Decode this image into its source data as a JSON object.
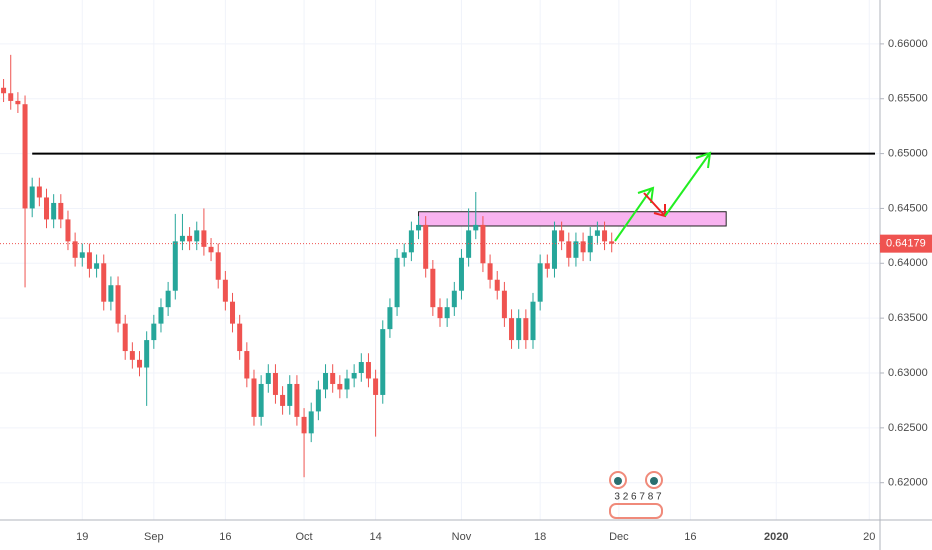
{
  "chart_data": {
    "type": "candlestick",
    "categories": [
      null,
      null,
      null,
      null,
      null,
      null,
      null,
      null,
      null,
      null,
      null,
      "19",
      null,
      null,
      null,
      null,
      null,
      null,
      null,
      null,
      null,
      "Sep",
      null,
      null,
      null,
      null,
      null,
      null,
      null,
      null,
      null,
      "16",
      null,
      null,
      null,
      null,
      null,
      null,
      null,
      null,
      null,
      null,
      "Oct",
      null,
      null,
      null,
      null,
      null,
      null,
      null,
      null,
      null,
      "14",
      null,
      null,
      null,
      null,
      null,
      null,
      null,
      null,
      null,
      null,
      null,
      "Nov",
      null,
      null,
      null,
      null,
      null,
      null,
      null,
      null,
      null,
      null,
      "18",
      null,
      null,
      null,
      null,
      null,
      null,
      null,
      null,
      null,
      null,
      "Dec",
      null,
      null,
      null,
      null,
      null,
      null,
      null,
      null,
      null,
      "16",
      null,
      null,
      null,
      null,
      null,
      null,
      null,
      null,
      null,
      null,
      null,
      "2020",
      null,
      null,
      null,
      null,
      null,
      null,
      null,
      null,
      null,
      null,
      null,
      null,
      "20",
      null
    ],
    "open": [
      0.656,
      0.6555,
      0.6548,
      0.6545,
      0.645,
      0.647,
      0.646,
      0.644,
      0.6455,
      0.644,
      0.642,
      0.6405,
      0.641,
      0.6395,
      0.64,
      0.6365,
      0.638,
      0.6345,
      0.632,
      0.6312,
      0.6305,
      0.633,
      0.6345,
      0.636,
      0.6375,
      0.642,
      0.6425,
      0.642,
      0.643,
      0.6415,
      0.641,
      0.6385,
      0.6365,
      0.6345,
      0.632,
      0.6295,
      0.626,
      0.629,
      0.63,
      0.628,
      0.627,
      0.629,
      0.626,
      0.6245,
      0.6265,
      0.6285,
      0.63,
      0.629,
      0.6285,
      0.6295,
      0.63,
      0.631,
      0.6295,
      0.628,
      0.634,
      0.636,
      0.6405,
      0.641,
      0.643,
      0.6435,
      0.6395,
      0.636,
      0.635,
      0.636,
      0.6375,
      0.6405,
      0.643,
      0.6435,
      0.64,
      0.6385,
      0.6375,
      0.635,
      0.633,
      0.635,
      0.633,
      0.6365,
      0.64,
      0.6395,
      0.643,
      0.642,
      0.6405,
      0.642,
      0.641,
      0.6425,
      0.643,
      0.642,
      null,
      null,
      null,
      null,
      null,
      null,
      null,
      null,
      null,
      null,
      null,
      null,
      null,
      null,
      null,
      null,
      null,
      null,
      null,
      null,
      null,
      null,
      null,
      null,
      null,
      null,
      null,
      null,
      null,
      null,
      null,
      null,
      null,
      null,
      null,
      null,
      null
    ],
    "high": [
      0.6568,
      0.659,
      0.6556,
      0.6553,
      0.6478,
      0.6478,
      0.6468,
      0.6463,
      0.6463,
      0.6448,
      0.6428,
      0.6418,
      0.6418,
      0.6408,
      0.6408,
      0.6388,
      0.6388,
      0.6353,
      0.6328,
      0.632,
      0.6338,
      0.6353,
      0.6368,
      0.6383,
      0.6445,
      0.6445,
      0.6433,
      0.6438,
      0.645,
      0.6423,
      0.6418,
      0.6393,
      0.6373,
      0.6353,
      0.6328,
      0.6303,
      0.6298,
      0.6308,
      0.6308,
      0.6288,
      0.6298,
      0.6298,
      0.6268,
      0.6273,
      0.6293,
      0.6308,
      0.6308,
      0.6298,
      0.6303,
      0.6308,
      0.6318,
      0.6318,
      0.6303,
      0.6348,
      0.6368,
      0.6413,
      0.6418,
      0.6438,
      0.6443,
      0.6443,
      0.6403,
      0.6368,
      0.6368,
      0.6383,
      0.6413,
      0.645,
      0.6465,
      0.6443,
      0.6408,
      0.6393,
      0.6383,
      0.6358,
      0.6358,
      0.6358,
      0.6373,
      0.6408,
      0.6408,
      0.6438,
      0.6438,
      0.6428,
      0.6428,
      0.6428,
      0.6433,
      0.6438,
      0.6438,
      0.6428,
      null,
      null,
      null,
      null,
      null,
      null,
      null,
      null,
      null,
      null,
      null,
      null,
      null,
      null,
      null,
      null,
      null,
      null,
      null,
      null,
      null,
      null,
      null,
      null,
      null,
      null,
      null,
      null,
      null,
      null,
      null,
      null,
      null,
      null,
      null,
      null,
      null
    ],
    "low": [
      0.6547,
      0.654,
      0.6537,
      0.6378,
      0.6442,
      0.6452,
      0.6432,
      0.6432,
      0.6432,
      0.6412,
      0.6397,
      0.6397,
      0.6387,
      0.6387,
      0.6357,
      0.6357,
      0.6337,
      0.6312,
      0.6304,
      0.6297,
      0.627,
      0.6322,
      0.6337,
      0.6352,
      0.6367,
      0.6412,
      0.6412,
      0.6412,
      0.6407,
      0.6402,
      0.6377,
      0.6357,
      0.6337,
      0.6312,
      0.6287,
      0.6252,
      0.6252,
      0.6282,
      0.6272,
      0.6262,
      0.6262,
      0.6252,
      0.6205,
      0.6237,
      0.6257,
      0.6277,
      0.6282,
      0.6277,
      0.6277,
      0.6287,
      0.6292,
      0.6287,
      0.6242,
      0.6272,
      0.6332,
      0.6352,
      0.6397,
      0.6402,
      0.6422,
      0.6387,
      0.6352,
      0.6342,
      0.6342,
      0.6352,
      0.6367,
      0.6397,
      0.6422,
      0.6392,
      0.6377,
      0.6367,
      0.6342,
      0.6322,
      0.6322,
      0.6322,
      0.6322,
      0.6357,
      0.6387,
      0.6387,
      0.6412,
      0.6397,
      0.6397,
      0.6402,
      0.6402,
      0.6417,
      0.6412,
      0.641,
      null,
      null,
      null,
      null,
      null,
      null,
      null,
      null,
      null,
      null,
      null,
      null,
      null,
      null,
      null,
      null,
      null,
      null,
      null,
      null,
      null,
      null,
      null,
      null,
      null,
      null,
      null,
      null,
      null,
      null,
      null,
      null,
      null,
      null,
      null,
      null,
      null
    ],
    "close": [
      0.6555,
      0.6548,
      0.6545,
      0.645,
      0.647,
      0.646,
      0.644,
      0.6455,
      0.644,
      0.642,
      0.6405,
      0.641,
      0.6395,
      0.64,
      0.6365,
      0.638,
      0.6345,
      0.632,
      0.6312,
      0.6305,
      0.633,
      0.6345,
      0.636,
      0.6375,
      0.642,
      0.6425,
      0.642,
      0.643,
      0.6415,
      0.641,
      0.6385,
      0.6365,
      0.6345,
      0.632,
      0.6295,
      0.626,
      0.629,
      0.63,
      0.628,
      0.627,
      0.629,
      0.626,
      0.6245,
      0.6265,
      0.6285,
      0.63,
      0.629,
      0.6285,
      0.6295,
      0.63,
      0.631,
      0.6295,
      0.628,
      0.634,
      0.636,
      0.6405,
      0.641,
      0.643,
      0.6435,
      0.6395,
      0.636,
      0.635,
      0.636,
      0.6375,
      0.6405,
      0.643,
      0.6435,
      0.64,
      0.6385,
      0.6375,
      0.635,
      0.633,
      0.635,
      0.633,
      0.6365,
      0.64,
      0.6395,
      0.643,
      0.642,
      0.6405,
      0.642,
      0.641,
      0.6425,
      0.643,
      0.642,
      0.64179,
      null,
      null,
      null,
      null,
      null,
      null,
      null,
      null,
      null,
      null,
      null,
      null,
      null,
      null,
      null,
      null,
      null,
      null,
      null,
      null,
      null,
      null,
      null,
      null,
      null,
      null,
      null,
      null,
      null,
      null,
      null,
      null,
      null,
      null,
      null,
      null,
      null
    ],
    "up_color": "#26a69a",
    "down_color": "#ef5350",
    "ylim": [
      0.6166,
      0.664
    ],
    "yticks": [
      {
        "value": 0.62,
        "label": "0.62000"
      },
      {
        "value": 0.625,
        "label": "0.62500"
      },
      {
        "value": 0.63,
        "label": "0.63000"
      },
      {
        "value": 0.635,
        "label": "0.63500"
      },
      {
        "value": 0.64,
        "label": "0.64000"
      },
      {
        "value": 0.645,
        "label": "0.64500"
      },
      {
        "value": 0.65,
        "label": "0.65000"
      },
      {
        "value": 0.655,
        "label": "0.65500"
      },
      {
        "value": 0.66,
        "label": "0.66000"
      }
    ],
    "grid": true,
    "resistance_line": 0.65,
    "zone": [
      0.6434,
      0.6447
    ],
    "watermark": "3 2 6 7 8 7"
  }
}
